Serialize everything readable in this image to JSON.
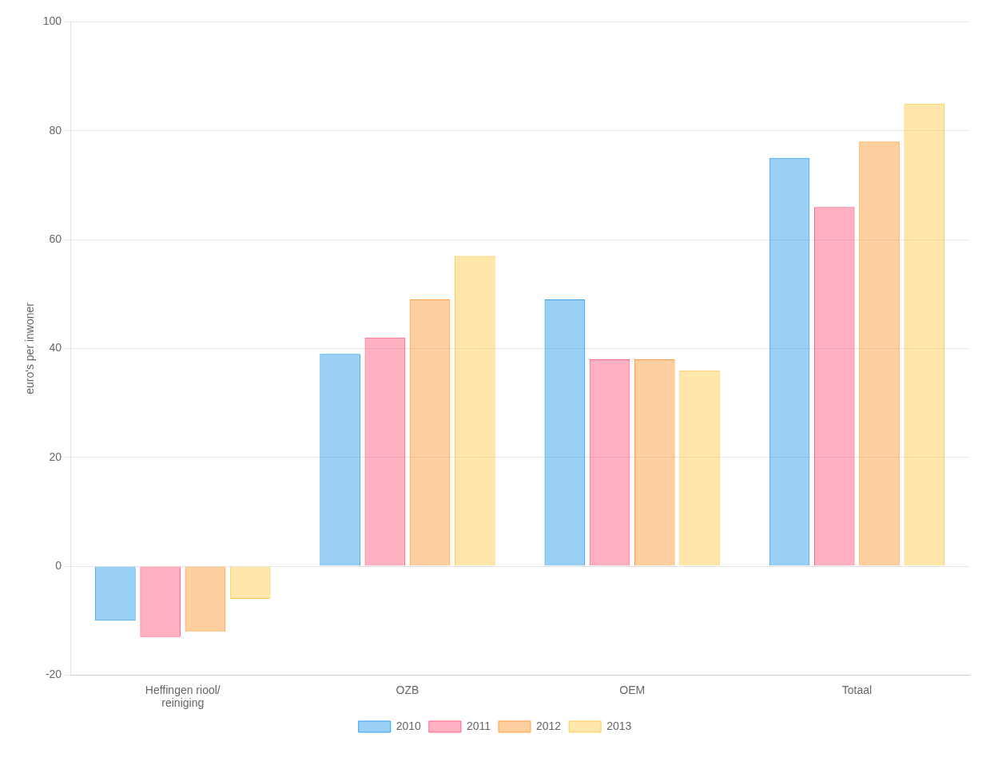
{
  "chart_data": {
    "type": "bar",
    "categories": [
      "Heffingen riool/\nreiniging",
      "OZB",
      "OEM",
      "Totaal"
    ],
    "series": [
      {
        "name": "2010",
        "values": [
          -10,
          39,
          49,
          75
        ]
      },
      {
        "name": "2011",
        "values": [
          -13,
          42,
          38,
          66
        ]
      },
      {
        "name": "2012",
        "values": [
          -12,
          49,
          38,
          78
        ]
      },
      {
        "name": "2013",
        "values": [
          -6,
          57,
          36,
          85
        ]
      }
    ],
    "ylabel": "euro's per inwoner",
    "ylim": [
      -20,
      100
    ],
    "yticks": [
      -20,
      0,
      20,
      40,
      60,
      80,
      100
    ],
    "grid": true,
    "legend": "bottom"
  }
}
